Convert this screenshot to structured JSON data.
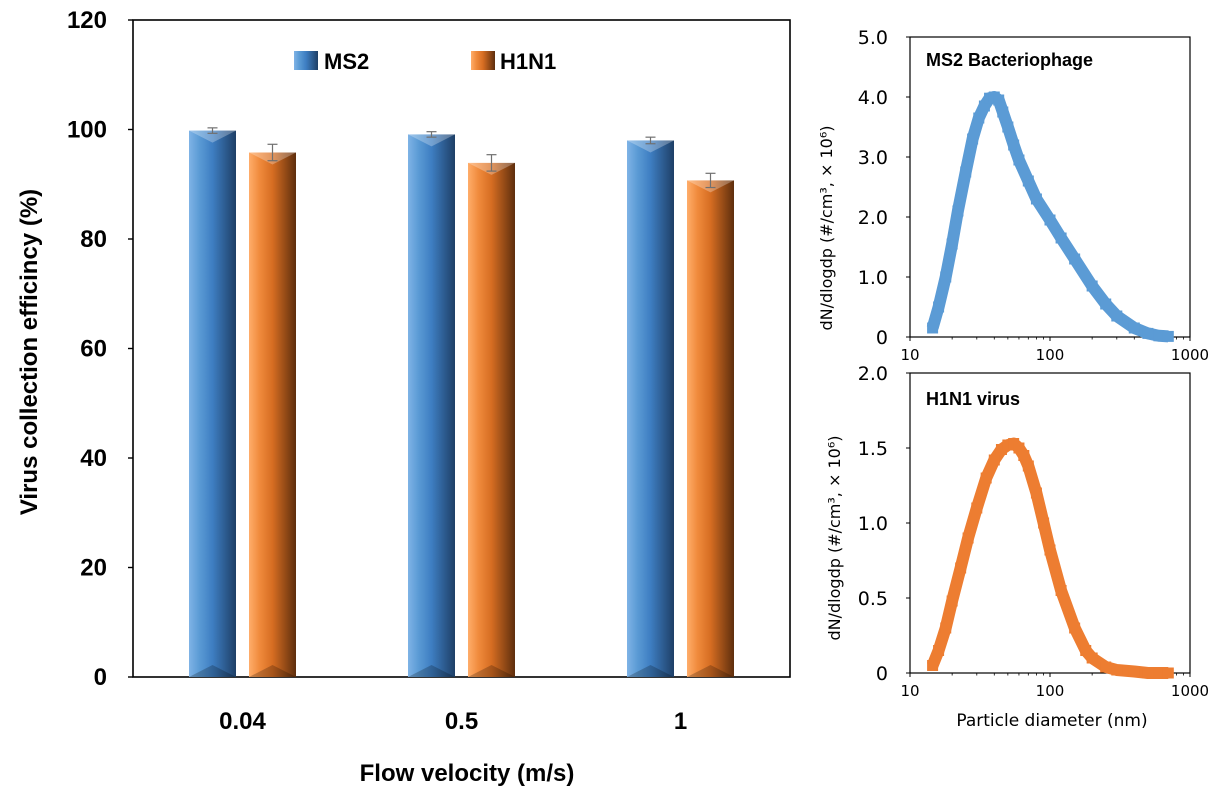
{
  "colors": {
    "ms2": "#4e8fd0",
    "h1n1": "#ee8b3a",
    "ms2_curve": "#5b9bd5",
    "h1n1_curve": "#ed7d31",
    "axis": "#000000",
    "errorbar": "#707070"
  },
  "chart_data": [
    {
      "type": "bar",
      "title": "",
      "xlabel": "Flow velocity (m/s)",
      "ylabel": "Virus collection efficincy (%)",
      "categories": [
        "0.04",
        "0.5",
        "1"
      ],
      "ylim": [
        0,
        120
      ],
      "yticks": [
        "0",
        "20",
        "40",
        "60",
        "80",
        "100",
        "120"
      ],
      "legend": "top-center",
      "grid": false,
      "series": [
        {
          "name": "MS2",
          "values": [
            99.8,
            99.1,
            98.0
          ],
          "errors": [
            0.5,
            0.5,
            0.6
          ]
        },
        {
          "name": "H1N1",
          "values": [
            95.8,
            93.9,
            90.7
          ],
          "errors": [
            1.5,
            1.5,
            1.3
          ]
        }
      ]
    },
    {
      "type": "line",
      "title": "MS2 Bacteriophage",
      "xlabel": "",
      "ylabel": "dN/dlogdp (#/cm³, × 10⁶)",
      "xscale": "log",
      "xlim": [
        10,
        1000
      ],
      "ylim": [
        0,
        5
      ],
      "xticks": [
        "10",
        "100",
        "1000"
      ],
      "yticks": [
        "0",
        "1.0",
        "2.0",
        "3.0",
        "4.0",
        "5.0"
      ],
      "series": [
        {
          "name": "MS2 Bacteriophage",
          "x": [
            14.5,
            16,
            18,
            20,
            22,
            25,
            28,
            31,
            34,
            37,
            40,
            43,
            46,
            50,
            55,
            60,
            70,
            80,
            100,
            120,
            150,
            200,
            250,
            300,
            400,
            500,
            600,
            700
          ],
          "y": [
            0.15,
            0.5,
            1.0,
            1.55,
            2.1,
            2.75,
            3.3,
            3.65,
            3.85,
            3.98,
            4.0,
            3.95,
            3.75,
            3.5,
            3.2,
            2.95,
            2.6,
            2.3,
            1.95,
            1.65,
            1.3,
            0.85,
            0.55,
            0.35,
            0.15,
            0.06,
            0.02,
            0.01
          ]
        }
      ]
    },
    {
      "type": "line",
      "title": "H1N1 virus",
      "xlabel": "Particle diameter (nm)",
      "ylabel": "dN/dlogdp (#/cm³, × 10⁶)",
      "xscale": "log",
      "xlim": [
        10,
        1000
      ],
      "ylim": [
        0,
        2
      ],
      "xticks": [
        "10",
        "100",
        "1000"
      ],
      "yticks": [
        "0",
        "0.5",
        "1.0",
        "1.5",
        "2.0"
      ],
      "series": [
        {
          "name": "H1N1 virus",
          "x": [
            14.5,
            16,
            18,
            20,
            23,
            26,
            30,
            35,
            40,
            45,
            50,
            55,
            60,
            65,
            70,
            80,
            90,
            100,
            120,
            150,
            180,
            200,
            250,
            300,
            400,
            500,
            600,
            700
          ],
          "y": [
            0.05,
            0.15,
            0.3,
            0.48,
            0.7,
            0.9,
            1.1,
            1.3,
            1.42,
            1.49,
            1.52,
            1.53,
            1.5,
            1.45,
            1.38,
            1.2,
            1.0,
            0.82,
            0.55,
            0.3,
            0.15,
            0.1,
            0.04,
            0.02,
            0.01,
            0.0,
            0.0,
            0.0
          ]
        }
      ]
    }
  ]
}
